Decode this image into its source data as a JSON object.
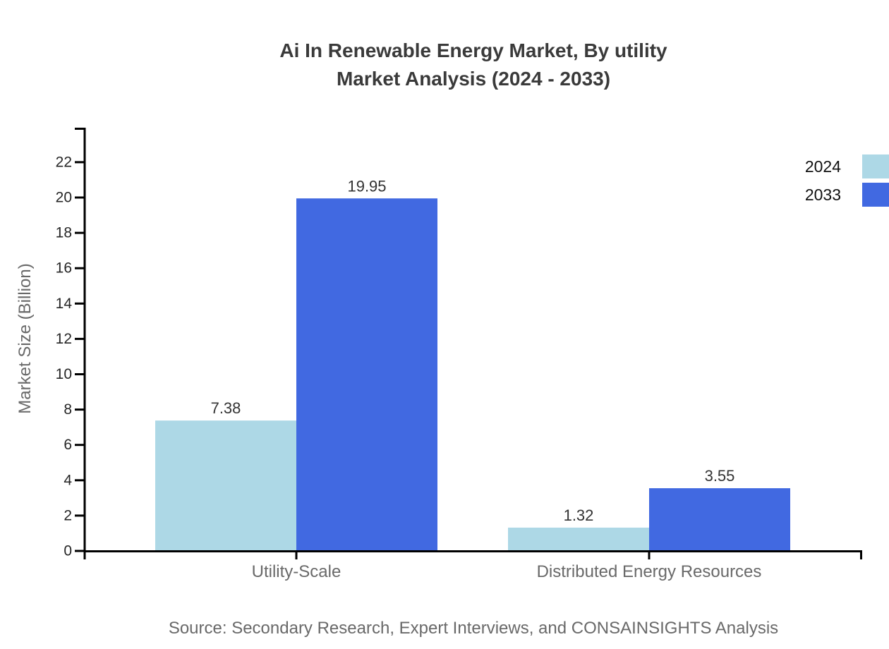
{
  "header": {
    "title_line1": "Ai In Renewable Energy Market, By utility",
    "title_line2": "Market Analysis (2024 - 2033)"
  },
  "footer": {
    "source": "Source: Secondary Research, Expert Interviews, and CONSAINSIGHTS Analysis"
  },
  "chart_data": {
    "type": "bar",
    "title": "Ai In Renewable Energy Market, By utility Market Analysis (2024 - 2033)",
    "categories": [
      "Utility-Scale",
      "Distributed Energy Resources"
    ],
    "series": [
      {
        "name": "2024",
        "color": "#ADD8E6",
        "values": [
          7.38,
          1.32
        ]
      },
      {
        "name": "2033",
        "color": "#4169E1",
        "values": [
          19.95,
          3.55
        ]
      }
    ],
    "value_labels": [
      "7.38",
      "19.95",
      "1.32",
      "3.55"
    ],
    "xlabel": "",
    "ylabel": "Market Size (Billion)",
    "yticks": [
      0,
      2,
      4,
      6,
      8,
      10,
      12,
      14,
      16,
      18,
      20,
      22
    ],
    "ylim": [
      0,
      23.95
    ],
    "grid": false,
    "legend_position": "top-right",
    "axis_color": "#000000"
  }
}
